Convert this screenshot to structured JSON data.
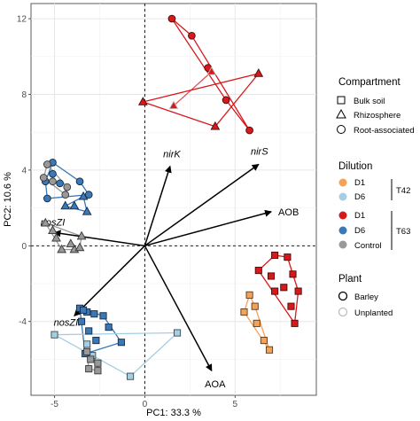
{
  "chart_data": {
    "type": "scatter",
    "xlabel": "PC1: 33.3 %",
    "ylabel": "PC2: 10.6 %",
    "xlim": [
      -6.3,
      9.5
    ],
    "ylim": [
      -7.9,
      12.8
    ],
    "x_ticks": [
      -5,
      0,
      5
    ],
    "y_ticks": [
      -4,
      0,
      4,
      8,
      12
    ],
    "grid": true,
    "zero_lines": true,
    "colors": {
      "T42_D1": "#f4a259",
      "T42_D6": "#a6cee3",
      "T63_D1": "#d7191c",
      "T63_D6": "#3a78b8",
      "Control": "#999999"
    },
    "loadings": [
      {
        "label": "nirK",
        "x": 1.4,
        "y": 4.2
      },
      {
        "label": "nirS",
        "x": 6.3,
        "y": 4.3
      },
      {
        "label": "AOB",
        "x": 7.0,
        "y": 1.8
      },
      {
        "label": "nosZI",
        "x": -5.0,
        "y": 0.7
      },
      {
        "label": "nosZII",
        "x": -3.9,
        "y": -3.7
      },
      {
        "label": "AOA",
        "x": 3.7,
        "y": -6.6
      }
    ],
    "groups": [
      {
        "dilution": "T63_D1",
        "compartment": "Rhizosphere",
        "plant": "Barley",
        "points": [
          [
            -0.1,
            7.6
          ],
          [
            6.3,
            9.1
          ],
          [
            3.9,
            6.3
          ]
        ]
      },
      {
        "dilution": "T63_D1",
        "compartment": "Root-associated",
        "plant": "Barley",
        "points": [
          [
            1.5,
            12.0
          ],
          [
            2.6,
            11.1
          ],
          [
            3.5,
            9.4
          ],
          [
            4.5,
            7.7
          ],
          [
            5.8,
            6.1
          ]
        ]
      },
      {
        "dilution": "T63_D1",
        "compartment": "Rhizosphere",
        "plant": "Unplanted",
        "points": [
          [
            1.6,
            7.4
          ],
          [
            3.7,
            9.2
          ]
        ]
      },
      {
        "dilution": "T63_D1",
        "compartment": "Bulk soil",
        "plant": "Barley",
        "points": [
          [
            6.3,
            -1.3
          ],
          [
            7.2,
            -0.5
          ],
          [
            7.9,
            -0.6
          ],
          [
            8.2,
            -1.5
          ],
          [
            8.5,
            -2.4
          ],
          [
            8.1,
            -3.2
          ],
          [
            7.2,
            -2.4
          ],
          [
            7.0,
            -1.6
          ],
          [
            7.7,
            -2.2
          ],
          [
            8.3,
            -4.1
          ]
        ]
      },
      {
        "dilution": "T42_D1",
        "compartment": "Bulk soil",
        "plant": "Barley",
        "points": [
          [
            5.8,
            -2.6
          ],
          [
            6.1,
            -3.2
          ],
          [
            5.5,
            -3.5
          ],
          [
            6.2,
            -4.1
          ],
          [
            6.6,
            -5.0
          ],
          [
            6.9,
            -5.5
          ]
        ]
      },
      {
        "dilution": "T63_D6",
        "compartment": "Root-associated",
        "plant": "Barley",
        "points": [
          [
            -5.1,
            4.4
          ],
          [
            -5.1,
            3.8
          ],
          [
            -5.5,
            3.4
          ],
          [
            -4.7,
            3.3
          ],
          [
            -3.6,
            3.4
          ],
          [
            -3.1,
            2.7
          ],
          [
            -5.4,
            2.5
          ]
        ]
      },
      {
        "dilution": "T63_D6",
        "compartment": "Rhizosphere",
        "plant": "Barley",
        "points": [
          [
            -3.4,
            2.6
          ],
          [
            -3.9,
            2.1
          ],
          [
            -4.4,
            2.1
          ],
          [
            -3.2,
            1.8
          ]
        ]
      },
      {
        "dilution": "Control",
        "compartment": "Root-associated",
        "plant": "Barley",
        "points": [
          [
            -5.4,
            4.3
          ],
          [
            -5.6,
            3.6
          ],
          [
            -5.1,
            3.4
          ],
          [
            -4.4,
            2.7
          ],
          [
            -4.3,
            3.1
          ]
        ]
      },
      {
        "dilution": "Control",
        "compartment": "Rhizosphere",
        "plant": "Barley",
        "points": [
          [
            -5.5,
            1.2
          ],
          [
            -5.1,
            0.8
          ],
          [
            -4.9,
            0.4
          ],
          [
            -3.9,
            -0.2
          ],
          [
            -4.1,
            0.1
          ],
          [
            -3.5,
            0.5
          ],
          [
            -3.6,
            -0.1
          ],
          [
            -4.6,
            -0.2
          ]
        ]
      },
      {
        "dilution": "T63_D6",
        "compartment": "Bulk soil",
        "plant": "Barley",
        "points": [
          [
            -3.6,
            -3.3
          ],
          [
            -3.2,
            -3.5
          ],
          [
            -2.8,
            -3.6
          ],
          [
            -2.3,
            -3.7
          ],
          [
            -2.0,
            -4.3
          ],
          [
            -2.7,
            -5.0
          ],
          [
            -3.1,
            -4.5
          ],
          [
            -3.5,
            -4.0
          ],
          [
            -1.3,
            -5.1
          ],
          [
            -3.4,
            -3.4
          ],
          [
            -3.3,
            -5.7
          ]
        ]
      },
      {
        "dilution": "T42_D6",
        "compartment": "Bulk soil",
        "plant": "Barley",
        "points": [
          [
            -5.0,
            -4.7
          ],
          [
            -3.2,
            -5.2
          ],
          [
            -0.8,
            -6.9
          ],
          [
            1.8,
            -4.6
          ],
          [
            -2.9,
            -5.8
          ]
        ]
      },
      {
        "dilution": "Control",
        "compartment": "Bulk soil",
        "plant": "Barley",
        "points": [
          [
            -3.2,
            -5.6
          ],
          [
            -3.0,
            -6.0
          ],
          [
            -2.6,
            -6.2
          ],
          [
            -3.1,
            -6.5
          ],
          [
            -2.6,
            -6.6
          ]
        ]
      }
    ],
    "legend": {
      "placement": "right",
      "compartment": {
        "title": "Compartment",
        "items": [
          "Bulk soil",
          "Rhizosphere",
          "Root-associated"
        ]
      },
      "dilution": {
        "title": "Dilution",
        "t42": {
          "label": "T42",
          "items": [
            "D1",
            "D6"
          ]
        },
        "t63": {
          "label": "T63",
          "items": [
            "D1",
            "D6",
            "Control"
          ]
        }
      },
      "plant": {
        "title": "Plant",
        "items": [
          "Barley",
          "Unplanted"
        ]
      }
    }
  }
}
